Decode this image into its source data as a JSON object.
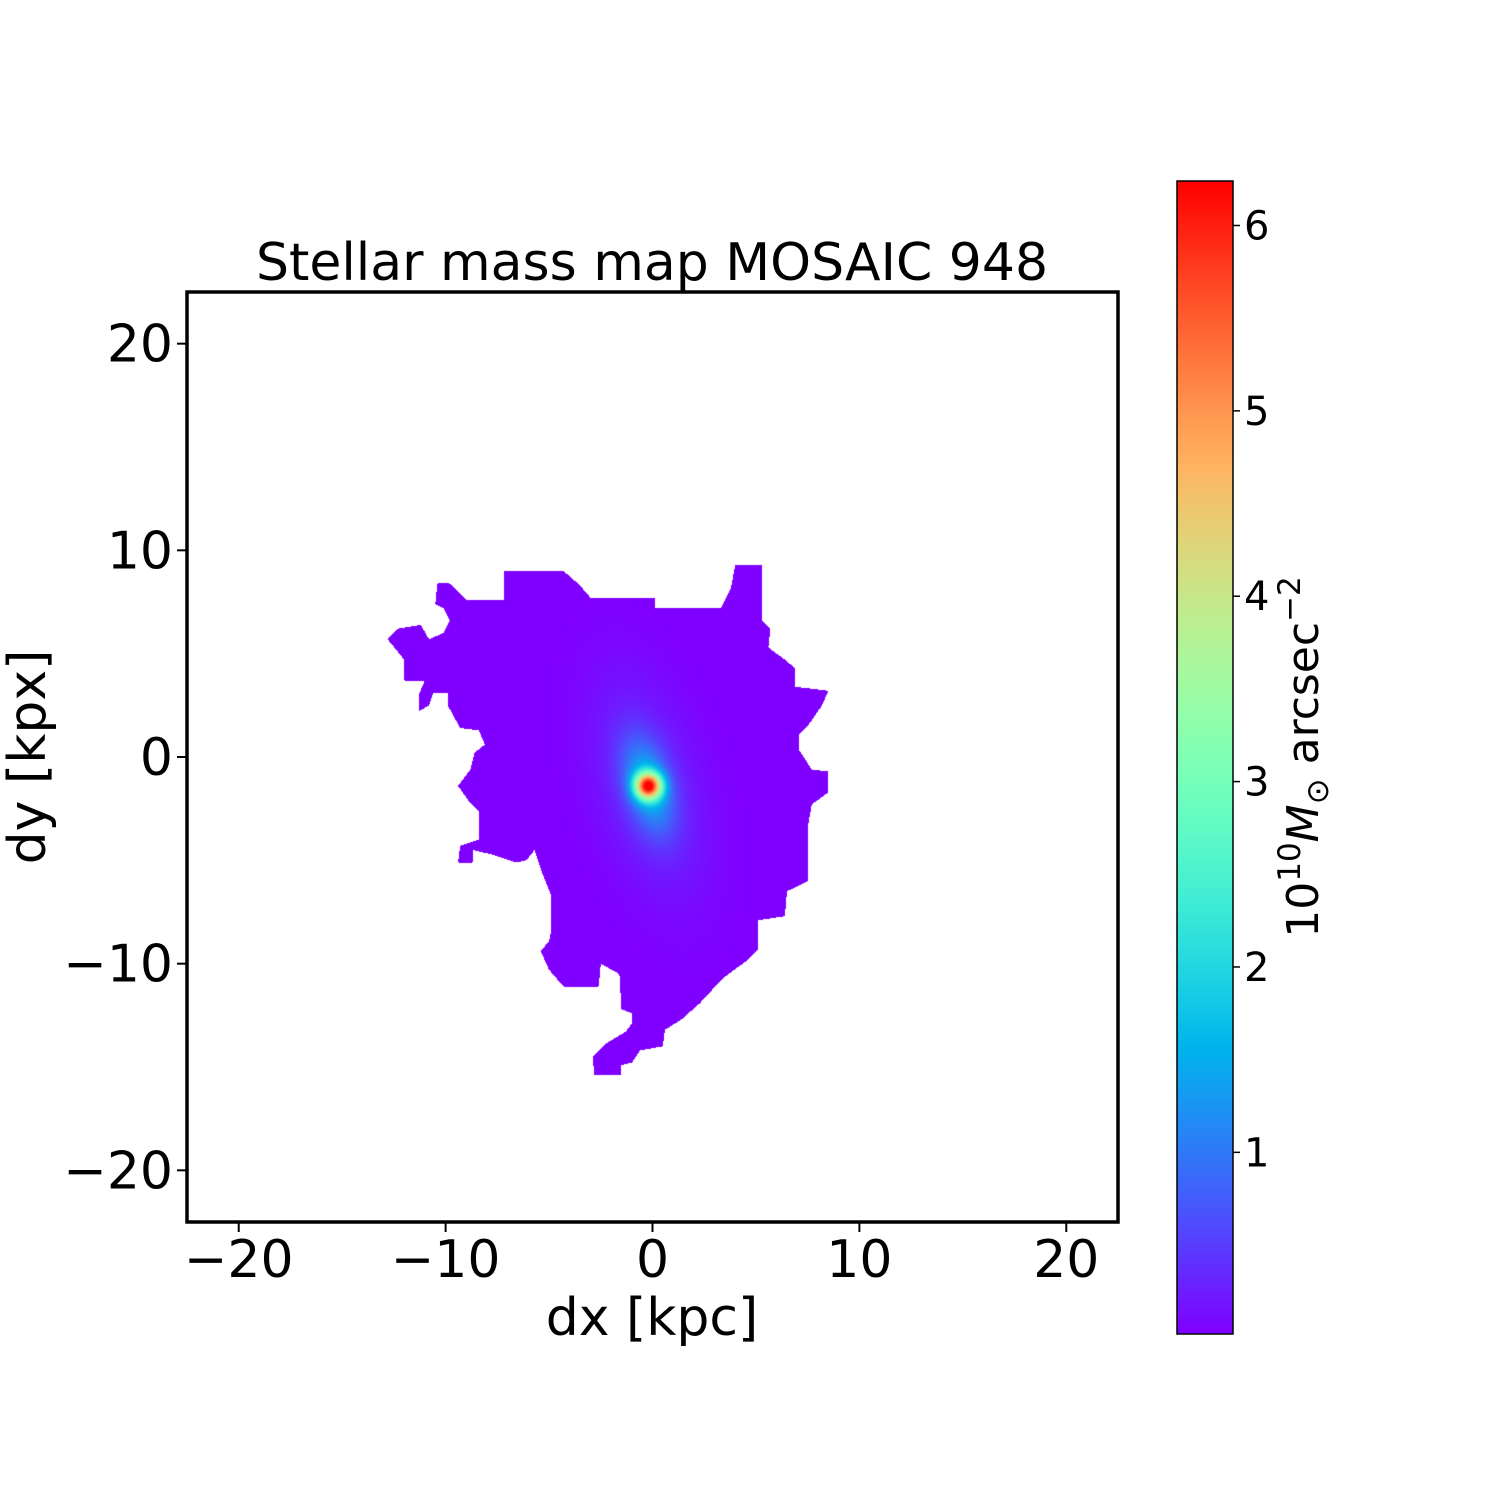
{
  "chart_data": {
    "type": "heatmap",
    "title": "Stellar mass map MOSAIC 948",
    "xlabel": "dx [kpc]",
    "ylabel": "dy [kpx]",
    "xlim": [
      -22.5,
      22.5
    ],
    "ylim": [
      -22.5,
      22.5
    ],
    "xticks": [
      -20,
      -10,
      0,
      10,
      20
    ],
    "yticks": [
      -20,
      -10,
      0,
      10,
      20
    ],
    "xtick_labels": [
      "−20",
      "−10",
      "0",
      "10",
      "20"
    ],
    "ytick_labels": [
      "−20",
      "−10",
      "0",
      "10",
      "20"
    ],
    "grid": false,
    "colormap": "rainbow",
    "colorbar": {
      "label_prefix": "10",
      "label_exp": "10",
      "label_m": "M",
      "label_sun": "⊙",
      "label_unit": " arcsec",
      "label_unit_exp": "−2",
      "range": [
        0.02,
        6.24
      ],
      "ticks": [
        1,
        2,
        3,
        4,
        5,
        6
      ],
      "tick_labels": [
        "1",
        "2",
        "3",
        "4",
        "5",
        "6"
      ]
    },
    "peak": {
      "x": -0.2,
      "y": -1.4,
      "value": 6.24
    },
    "mask_outline_kpc": [
      [
        -7.2,
        9.0
      ],
      [
        -4.3,
        9.0
      ],
      [
        -3.5,
        8.3
      ],
      [
        -3.0,
        7.7
      ],
      [
        0.1,
        7.7
      ],
      [
        0.1,
        7.2
      ],
      [
        3.3,
        7.2
      ],
      [
        3.8,
        8.2
      ],
      [
        4.0,
        9.3
      ],
      [
        5.3,
        9.3
      ],
      [
        5.3,
        6.6
      ],
      [
        5.7,
        6.2
      ],
      [
        5.6,
        5.3
      ],
      [
        6.4,
        4.7
      ],
      [
        6.9,
        4.3
      ],
      [
        6.9,
        3.4
      ],
      [
        8.5,
        3.2
      ],
      [
        8.2,
        2.5
      ],
      [
        7.5,
        1.5
      ],
      [
        7.1,
        1.1
      ],
      [
        7.1,
        0.3
      ],
      [
        7.7,
        -0.6
      ],
      [
        8.5,
        -0.7
      ],
      [
        8.5,
        -1.7
      ],
      [
        7.7,
        -2.3
      ],
      [
        7.5,
        -3.4
      ],
      [
        7.5,
        -6.0
      ],
      [
        6.5,
        -6.5
      ],
      [
        6.4,
        -7.7
      ],
      [
        5.1,
        -7.9
      ],
      [
        5.1,
        -9.3
      ],
      [
        4.5,
        -9.9
      ],
      [
        3.4,
        -10.7
      ],
      [
        2.3,
        -11.9
      ],
      [
        1.4,
        -12.7
      ],
      [
        0.6,
        -13.2
      ],
      [
        0.5,
        -14.0
      ],
      [
        -0.6,
        -14.2
      ],
      [
        -1.0,
        -14.8
      ],
      [
        -1.5,
        -14.9
      ],
      [
        -1.5,
        -15.4
      ],
      [
        -2.8,
        -15.4
      ],
      [
        -2.9,
        -14.5
      ],
      [
        -2.3,
        -13.9
      ],
      [
        -1.3,
        -13.3
      ],
      [
        -1.0,
        -12.9
      ],
      [
        -1.0,
        -12.4
      ],
      [
        -1.5,
        -12.2
      ],
      [
        -1.6,
        -10.5
      ],
      [
        -2.5,
        -10.0
      ],
      [
        -2.6,
        -11.1
      ],
      [
        -4.3,
        -11.1
      ],
      [
        -5.0,
        -10.3
      ],
      [
        -5.4,
        -9.4
      ],
      [
        -5.0,
        -8.9
      ],
      [
        -4.9,
        -8.4
      ],
      [
        -4.9,
        -6.7
      ],
      [
        -5.3,
        -5.7
      ],
      [
        -5.7,
        -4.5
      ],
      [
        -6.1,
        -5.0
      ],
      [
        -6.6,
        -5.1
      ],
      [
        -7.8,
        -4.7
      ],
      [
        -8.7,
        -4.5
      ],
      [
        -8.7,
        -5.1
      ],
      [
        -9.4,
        -5.1
      ],
      [
        -9.3,
        -4.3
      ],
      [
        -8.4,
        -4.0
      ],
      [
        -8.4,
        -2.6
      ],
      [
        -8.9,
        -2.1
      ],
      [
        -9.4,
        -1.4
      ],
      [
        -8.8,
        -0.6
      ],
      [
        -8.6,
        0.2
      ],
      [
        -8.1,
        0.6
      ],
      [
        -8.4,
        1.3
      ],
      [
        -9.3,
        1.4
      ],
      [
        -9.9,
        2.5
      ],
      [
        -9.9,
        3.1
      ],
      [
        -10.6,
        3.1
      ],
      [
        -10.8,
        2.5
      ],
      [
        -11.3,
        2.2
      ],
      [
        -11.3,
        3.0
      ],
      [
        -11.0,
        3.7
      ],
      [
        -12.0,
        3.7
      ],
      [
        -12.0,
        4.7
      ],
      [
        -12.8,
        5.7
      ],
      [
        -12.3,
        6.2
      ],
      [
        -11.2,
        6.4
      ],
      [
        -10.8,
        5.7
      ],
      [
        -10.1,
        6.0
      ],
      [
        -9.8,
        6.6
      ],
      [
        -10.1,
        7.2
      ],
      [
        -10.5,
        7.4
      ],
      [
        -10.4,
        8.4
      ],
      [
        -9.8,
        8.4
      ],
      [
        -9.0,
        7.6
      ],
      [
        -7.2,
        7.6
      ]
    ]
  }
}
